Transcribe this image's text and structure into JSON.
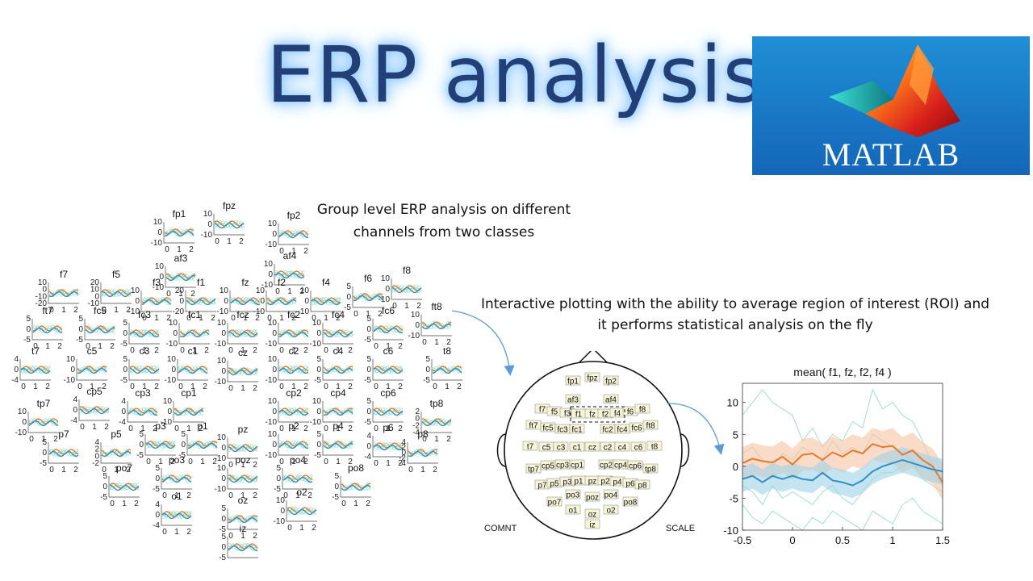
{
  "slide": {
    "title": "ERP analysis",
    "logo_label": "MATLAB",
    "caption_group_line1": "Group level ERP analysis on different",
    "caption_group_line2": "channels from two classes",
    "caption_interactive_line1": "Interactive plotting with the ability to average region of interest (ROI) and",
    "caption_interactive_line2": "it performs statistical analysis on the fly"
  },
  "colors": {
    "title_text": "#223f78",
    "title_glow": "#9fd3ff",
    "logo_bg": "#1466b8",
    "class1": "#e37a2d",
    "class1_band": "#f6c3a3",
    "class2": "#2e8fc4",
    "class2_band": "#9fd2ea",
    "subject_lines": "#7fd3b8",
    "arrow": "#5a9bd5"
  },
  "channel_grid": {
    "channels": [
      {
        "label": "fp1",
        "y_ticks": [
          "10",
          "0",
          "-10"
        ],
        "x_ticks": [
          "0",
          "1",
          "2"
        ]
      },
      {
        "label": "fpz",
        "y_ticks": [
          "10",
          "0",
          "-10"
        ],
        "x_ticks": [
          "0",
          "1",
          "2"
        ]
      },
      {
        "label": "fp2",
        "y_ticks": [
          "10",
          "0",
          "-10"
        ],
        "x_ticks": [
          "0",
          "1",
          "2"
        ]
      },
      {
        "label": "af3",
        "y_ticks": [
          "10",
          "0",
          "-10"
        ],
        "x_ticks": [
          "0",
          "1",
          "2"
        ]
      },
      {
        "label": "af4",
        "y_ticks": [
          "10",
          "0",
          "-10"
        ],
        "x_ticks": [
          "0",
          "1",
          "2"
        ]
      },
      {
        "label": "f7",
        "y_ticks": [
          "10",
          "0",
          "-10",
          "-20"
        ],
        "x_ticks": [
          "0",
          "1",
          "2"
        ]
      },
      {
        "label": "f5",
        "y_ticks": [
          "20",
          "10",
          "0",
          "-10"
        ],
        "x_ticks": [
          "0",
          "1",
          "2"
        ]
      },
      {
        "label": "f3",
        "y_ticks": [
          "10",
          "0",
          "-10"
        ],
        "x_ticks": [
          "0",
          "1",
          "2"
        ]
      },
      {
        "label": "f1",
        "y_ticks": [
          "20",
          "0",
          "-20"
        ],
        "x_ticks": [
          "0",
          "1",
          "2"
        ]
      },
      {
        "label": "fz",
        "y_ticks": [
          "10",
          "0",
          "-10"
        ],
        "x_ticks": [
          "0",
          "1",
          "2"
        ]
      },
      {
        "label": "f2",
        "y_ticks": [
          "10",
          "0",
          "-10"
        ],
        "x_ticks": [
          "0",
          "1",
          "2"
        ]
      },
      {
        "label": "f4",
        "y_ticks": [
          "10",
          "0",
          "-10"
        ],
        "x_ticks": [
          "0",
          "1",
          "2"
        ]
      },
      {
        "label": "f6",
        "y_ticks": [
          "5",
          "0",
          "-5"
        ],
        "x_ticks": [
          "0",
          "1",
          "2"
        ]
      },
      {
        "label": "f8",
        "y_ticks": [
          "10",
          "0",
          "-10"
        ],
        "x_ticks": [
          "0",
          "1",
          "2"
        ]
      },
      {
        "label": "ft7",
        "y_ticks": [
          "5",
          "0",
          "-5"
        ],
        "x_ticks": [
          "0",
          "1",
          "2"
        ]
      },
      {
        "label": "fc5",
        "y_ticks": [
          "5",
          "0",
          "-5"
        ],
        "x_ticks": [
          "0",
          "1",
          "2"
        ]
      },
      {
        "label": "fc3",
        "y_ticks": [
          "5",
          "0",
          "-5"
        ],
        "x_ticks": [
          "0",
          "1",
          "2"
        ]
      },
      {
        "label": "fc1",
        "y_ticks": [
          "10",
          "0",
          "-10"
        ],
        "x_ticks": [
          "0",
          "1",
          "2"
        ]
      },
      {
        "label": "fcz",
        "y_ticks": [
          "10",
          "0",
          "-10"
        ],
        "x_ticks": [
          "0",
          "1",
          "2"
        ]
      },
      {
        "label": "fc2",
        "y_ticks": [
          "10",
          "0",
          "-10"
        ],
        "x_ticks": [
          "0",
          "1",
          "2"
        ]
      },
      {
        "label": "fc4",
        "y_ticks": [
          "10",
          "0",
          "-10"
        ],
        "x_ticks": [
          "0",
          "1",
          "2"
        ]
      },
      {
        "label": "fc6",
        "y_ticks": [
          "5",
          "0",
          "-5"
        ],
        "x_ticks": [
          "0",
          "1",
          "2"
        ]
      },
      {
        "label": "ft8",
        "y_ticks": [
          "10",
          "0",
          "-10"
        ],
        "x_ticks": [
          "0",
          "1",
          "2"
        ]
      },
      {
        "label": "t7",
        "y_ticks": [
          "4",
          "0",
          "-4"
        ],
        "x_ticks": [
          "0",
          "1",
          "2"
        ]
      },
      {
        "label": "c5",
        "y_ticks": [
          "10",
          "0",
          "-10"
        ],
        "x_ticks": [
          "0",
          "1",
          "2"
        ]
      },
      {
        "label": "c3",
        "y_ticks": [
          "5",
          "0",
          "-5"
        ],
        "x_ticks": [
          "0",
          "1",
          "2"
        ]
      },
      {
        "label": "c1",
        "y_ticks": [
          "10",
          "0",
          "-10"
        ],
        "x_ticks": [
          "0",
          "1",
          "2"
        ]
      },
      {
        "label": "cz",
        "y_ticks": [
          "10",
          "0",
          "-10"
        ],
        "x_ticks": [
          "0",
          "1",
          "2"
        ]
      },
      {
        "label": "c2",
        "y_ticks": [
          "10",
          "0",
          "-10"
        ],
        "x_ticks": [
          "0",
          "1",
          "2"
        ]
      },
      {
        "label": "c4",
        "y_ticks": [
          "5",
          "0",
          "-5"
        ],
        "x_ticks": [
          "0",
          "1",
          "2"
        ]
      },
      {
        "label": "c6",
        "y_ticks": [
          "5",
          "0",
          "-5"
        ],
        "x_ticks": [
          "0",
          "1",
          "2"
        ]
      },
      {
        "label": "t8",
        "y_ticks": [
          "5",
          "0",
          "-5"
        ],
        "x_ticks": [
          "0",
          "1",
          "2"
        ]
      },
      {
        "label": "cp5",
        "y_ticks": [
          "4",
          "0",
          "-4"
        ],
        "x_ticks": [
          "0",
          "1",
          "2"
        ]
      },
      {
        "label": "cp3",
        "y_ticks": [
          "4",
          "0",
          "-4"
        ],
        "x_ticks": [
          "0",
          "1",
          "2"
        ]
      },
      {
        "label": "cp1",
        "y_ticks": [
          "10",
          "0",
          "-10"
        ],
        "x_ticks": [
          "0",
          "1",
          "2"
        ]
      },
      {
        "label": "cp2",
        "y_ticks": [
          "10",
          "0",
          "-10"
        ],
        "x_ticks": [
          "0",
          "1",
          "2"
        ]
      },
      {
        "label": "cp4",
        "y_ticks": [
          "10",
          "0",
          "-10"
        ],
        "x_ticks": [
          "0",
          "1",
          "2"
        ]
      },
      {
        "label": "cp6",
        "y_ticks": [
          "5",
          "0",
          "-5"
        ],
        "x_ticks": [
          "0",
          "1",
          "2"
        ]
      },
      {
        "label": "tp7",
        "y_ticks": [
          "10",
          "0",
          "-10"
        ],
        "x_ticks": [
          "0",
          "1",
          "2"
        ]
      },
      {
        "label": "tp8",
        "y_ticks": [
          "2",
          "0",
          "-2",
          "-4"
        ],
        "x_ticks": [
          "0",
          "1",
          "2"
        ]
      },
      {
        "label": "p7",
        "y_ticks": [
          "5",
          "0",
          "-5"
        ],
        "x_ticks": [
          "0",
          "1",
          "2"
        ]
      },
      {
        "label": "p5",
        "y_ticks": [
          "4",
          "2",
          "0",
          "-2"
        ],
        "x_ticks": [
          "0",
          "1",
          "2"
        ]
      },
      {
        "label": "p3",
        "y_ticks": [
          "5",
          "0",
          "-5"
        ],
        "x_ticks": [
          "0",
          "1",
          "2"
        ]
      },
      {
        "label": "p1",
        "y_ticks": [
          "5",
          "0",
          "-5"
        ],
        "x_ticks": [
          "0",
          "1",
          "2"
        ]
      },
      {
        "label": "pz",
        "y_ticks": [
          "10",
          "0",
          "-10"
        ],
        "x_ticks": [
          "0",
          "1",
          "2"
        ]
      },
      {
        "label": "p2",
        "y_ticks": [
          "10",
          "0",
          "-10"
        ],
        "x_ticks": [
          "0",
          "1",
          "2"
        ]
      },
      {
        "label": "p4",
        "y_ticks": [
          "5",
          "0",
          "-5"
        ],
        "x_ticks": [
          "0",
          "1",
          "2"
        ]
      },
      {
        "label": "p6",
        "y_ticks": [
          "4",
          "0",
          "-4"
        ],
        "x_ticks": [
          "0",
          "1",
          "2"
        ]
      },
      {
        "label": "p8",
        "y_ticks": [
          "4",
          "2",
          "0",
          "-2",
          "-4"
        ],
        "x_ticks": [
          "0",
          "1",
          "2"
        ]
      },
      {
        "label": "po7",
        "y_ticks": [
          "5",
          "0",
          "-5"
        ],
        "x_ticks": [
          "0",
          "1",
          "2"
        ]
      },
      {
        "label": "po3",
        "y_ticks": [
          "5",
          "0",
          "-5"
        ],
        "x_ticks": [
          "0",
          "1",
          "2"
        ]
      },
      {
        "label": "poz",
        "y_ticks": [
          "10",
          "0",
          "-10"
        ],
        "x_ticks": [
          "0",
          "1",
          "2"
        ]
      },
      {
        "label": "po4",
        "y_ticks": [
          "5",
          "0",
          "-5"
        ],
        "x_ticks": [
          "0",
          "1",
          "2"
        ]
      },
      {
        "label": "po8",
        "y_ticks": [
          "5",
          "0",
          "-5"
        ],
        "x_ticks": [
          "0",
          "1",
          "2"
        ]
      },
      {
        "label": "o1",
        "y_ticks": [
          "4",
          "0",
          "-4"
        ],
        "x_ticks": [
          "0",
          "1",
          "2"
        ]
      },
      {
        "label": "oz",
        "y_ticks": [
          "5",
          "0",
          "-5"
        ],
        "x_ticks": [
          "0",
          "1",
          "2"
        ]
      },
      {
        "label": "o2",
        "y_ticks": [
          "10",
          "0",
          "-10"
        ],
        "x_ticks": [
          "0",
          "1",
          "2"
        ]
      },
      {
        "label": "iz",
        "y_ticks": [
          "5",
          "0",
          "-5"
        ],
        "x_ticks": [
          "0",
          "1",
          "2"
        ]
      }
    ]
  },
  "head_map": {
    "electrodes": [
      "fp1",
      "fp2",
      "fpz",
      "af3",
      "af4",
      "f7",
      "f5",
      "f3",
      "f1",
      "fz",
      "f2",
      "f4",
      "f6",
      "f8",
      "ft7",
      "fc5",
      "fc3",
      "fc1",
      "fc2",
      "fc4",
      "fc6",
      "ft8",
      "t7",
      "c5",
      "c3",
      "c1",
      "cz",
      "c2",
      "c4",
      "c6",
      "t8",
      "tp7",
      "cp5",
      "cp3",
      "cp1",
      "cp2",
      "cp4",
      "cp6",
      "tp8",
      "p7",
      "p5",
      "p3",
      "p1",
      "pz",
      "p2",
      "p4",
      "p6",
      "p8",
      "po7",
      "po3",
      "poz",
      "po4",
      "po8",
      "o1",
      "oz",
      "o2",
      "iz"
    ],
    "selected_roi": [
      "f1",
      "fz",
      "f2",
      "f4"
    ],
    "comnt_label": "COMNT",
    "scale_label": "SCALE"
  },
  "chart_data": {
    "type": "line",
    "title": "mean( f1, fz, f2, f4 )",
    "xlabel": "",
    "ylabel": "",
    "xlim": [
      -0.5,
      1.5
    ],
    "ylim": [
      -10,
      13
    ],
    "x_ticks": [
      "-0.5",
      "0",
      "0.5",
      "1",
      "1.5"
    ],
    "y_ticks": [
      "10",
      "5",
      "0",
      "-5",
      "-10"
    ],
    "x": [
      -0.5,
      -0.4,
      -0.3,
      -0.2,
      -0.1,
      0,
      0.1,
      0.2,
      0.3,
      0.4,
      0.5,
      0.6,
      0.7,
      0.8,
      0.9,
      1.0,
      1.1,
      1.2,
      1.3,
      1.4,
      1.5
    ],
    "series": [
      {
        "values": [
          0.5,
          1.2,
          0.8,
          0.6,
          1.5,
          0.3,
          1.8,
          2.0,
          1.0,
          2.2,
          1.5,
          2.5,
          2.0,
          3.5,
          3.0,
          3.2,
          1.8,
          2.5,
          1.0,
          0.0,
          -2.5
        ],
        "band": [
          2.5,
          2.5,
          2.5,
          2.5,
          2.5,
          2.5,
          2.5,
          2.5,
          2.5,
          2.5,
          2.5,
          2.5,
          2.5,
          2.5,
          2.5,
          2.8,
          2.8,
          2.8,
          2.8,
          2.8,
          2.8
        ]
      },
      {
        "values": [
          -2.0,
          -1.5,
          -2.5,
          -1.5,
          -2.0,
          -1.5,
          -2.0,
          -2.2,
          -1.0,
          -2.2,
          -2.5,
          -3.0,
          -2.2,
          -0.8,
          0.0,
          0.5,
          1.0,
          0.5,
          0.0,
          -0.5,
          -0.8
        ],
        "band": [
          2.0,
          2.0,
          2.0,
          2.0,
          2.0,
          2.0,
          2.0,
          2.0,
          2.0,
          2.0,
          2.0,
          2.0,
          2.0,
          2.0,
          2.0,
          2.0,
          2.0,
          2.0,
          2.0,
          2.0,
          2.0
        ]
      }
    ]
  }
}
